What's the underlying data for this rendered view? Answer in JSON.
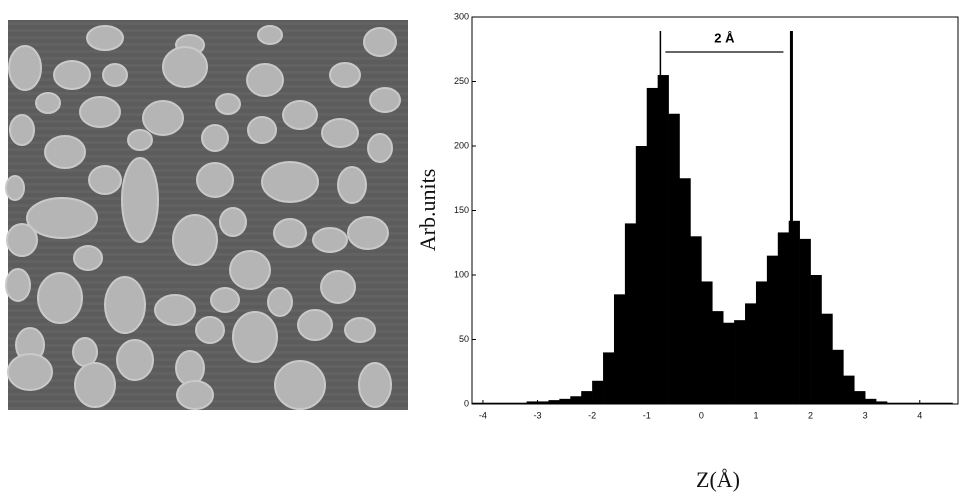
{
  "chart_data": {
    "type": "histogram",
    "ylabel": "Arb.units",
    "xlabel": "Z(Å)",
    "annotation": "2 Å",
    "markers": [
      -0.75,
      1.65
    ],
    "bins": [
      -4.2,
      -4.0,
      -3.8,
      -3.6,
      -3.4,
      -3.2,
      -3.0,
      -2.8,
      -2.6,
      -2.4,
      -2.2,
      -2.0,
      -1.8,
      -1.6,
      -1.4,
      -1.2,
      -1.0,
      -0.8,
      -0.6,
      -0.4,
      -0.2,
      0.0,
      0.2,
      0.4,
      0.6,
      0.8,
      1.0,
      1.2,
      1.4,
      1.6,
      1.8,
      2.0,
      2.2,
      2.4,
      2.6,
      2.8,
      3.0,
      3.2,
      3.4,
      3.6,
      3.8,
      4.0,
      4.2,
      4.4,
      4.6
    ],
    "values": [
      1,
      1,
      1,
      1,
      1,
      2,
      2,
      3,
      4,
      6,
      10,
      18,
      40,
      85,
      140,
      200,
      245,
      255,
      225,
      175,
      130,
      95,
      72,
      63,
      65,
      78,
      95,
      115,
      133,
      142,
      128,
      100,
      70,
      42,
      22,
      10,
      4,
      2,
      1,
      1,
      1,
      1,
      1,
      1
    ],
    "color": "#000000",
    "xlim": [
      -4.2,
      4.7
    ],
    "ylim": [
      0,
      300
    ],
    "xticks": [
      -4,
      -3,
      -2,
      -1,
      0,
      1,
      2,
      3,
      4
    ],
    "yticks": [
      0,
      50,
      100,
      150,
      200,
      250,
      300
    ]
  }
}
